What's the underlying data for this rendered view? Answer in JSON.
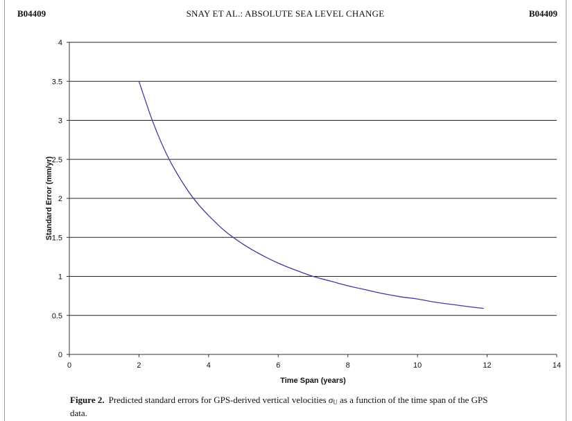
{
  "header": {
    "left_id": "B04409",
    "title": "SNAY ET AL.: ABSOLUTE SEA LEVEL CHANGE",
    "right_id": "B04409"
  },
  "caption": {
    "label": "Figure 2.",
    "text_before": "Predicted standard errors for GPS-derived vertical velocities ",
    "symbol": "σ",
    "symbol_subscript": "U",
    "text_after": " as a function of the time span of the GPS data."
  },
  "chart_data": {
    "type": "line",
    "title": "",
    "xlabel": "Time Span (years)",
    "ylabel": "Standard Error (mm/yr)",
    "xlim": [
      0,
      14
    ],
    "ylim": [
      0,
      4
    ],
    "xticks": [
      0,
      2,
      4,
      6,
      8,
      10,
      12,
      14
    ],
    "yticks": [
      0,
      0.5,
      1,
      1.5,
      2,
      2.5,
      3,
      3.5,
      4
    ],
    "ytick_labels": [
      "0",
      "0.5",
      "1",
      "1.5",
      "2",
      "2.5",
      "3",
      "3.5",
      "4"
    ],
    "grid": "horizontal",
    "legend": "none",
    "line_color": "#3b3b9a",
    "series": [
      {
        "x": [
          2,
          2.4,
          2.8,
          3.2,
          3.6,
          4,
          4.5,
          5,
          5.5,
          6,
          6.5,
          7,
          7.5,
          8,
          8.5,
          9,
          9.5,
          10,
          10.5,
          11,
          11.5,
          11.9
        ],
        "y": [
          3.5,
          2.98,
          2.56,
          2.24,
          1.98,
          1.78,
          1.57,
          1.41,
          1.28,
          1.17,
          1.08,
          1.0,
          0.94,
          0.88,
          0.83,
          0.78,
          0.74,
          0.71,
          0.67,
          0.64,
          0.61,
          0.59
        ]
      }
    ]
  }
}
